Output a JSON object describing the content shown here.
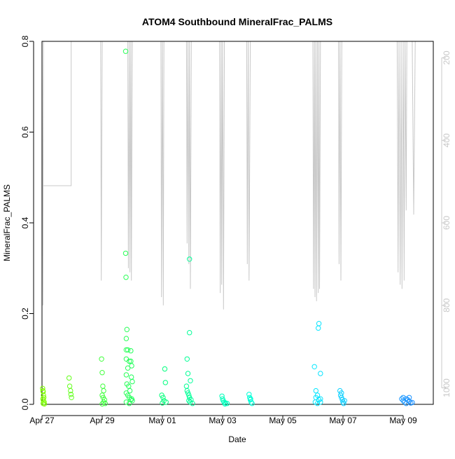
{
  "chart_data": {
    "type": "scatter",
    "title": "ATOM4 Southbound MineralFrac_PALMS",
    "xlabel": "Date",
    "ylabel": "MineralFrac_PALMS",
    "xlim": [
      0.0,
      13.0
    ],
    "ylim": [
      0.0,
      0.8
    ],
    "x_unit": "days since Apr 27",
    "x_ticks": [
      {
        "value": 0,
        "label": "Apr 27"
      },
      {
        "value": 2,
        "label": "Apr 29"
      },
      {
        "value": 4,
        "label": "May 01"
      },
      {
        "value": 6,
        "label": "May 03"
      },
      {
        "value": 8,
        "label": "May 05"
      },
      {
        "value": 10,
        "label": "May 07"
      },
      {
        "value": 12,
        "label": "May 09"
      }
    ],
    "y_ticks": [
      0.0,
      0.2,
      0.4,
      0.6,
      0.8
    ],
    "y_tick_labels": [
      "0.0",
      "0.2",
      "0.4",
      "0.6",
      "0.8"
    ],
    "secondary_axis": {
      "label": "",
      "range": [
        1040,
        160
      ],
      "ticks": [
        200,
        400,
        600,
        800,
        1000
      ],
      "tick_labels": [
        "200",
        "400",
        "600",
        "800",
        "1000"
      ],
      "color": "#c8c8c8"
    },
    "series": [
      {
        "name": "MineralFrac_PALMS",
        "color_scale": [
          "#7fff00",
          "#00ff7f",
          "#00ffff",
          "#1e90ff"
        ],
        "points": [
          [
            0.02,
            0.035
          ],
          [
            0.03,
            0.03
          ],
          [
            0.04,
            0.028
          ],
          [
            0.05,
            0.02
          ],
          [
            0.06,
            0.015
          ],
          [
            0.03,
            0.012
          ],
          [
            0.05,
            0.008
          ],
          [
            0.07,
            0.005
          ],
          [
            0.04,
            0.002
          ],
          [
            0.08,
            0.001
          ],
          [
            0.9,
            0.058
          ],
          [
            0.92,
            0.04
          ],
          [
            0.95,
            0.03
          ],
          [
            0.96,
            0.022
          ],
          [
            0.98,
            0.015
          ],
          [
            1.98,
            0.1
          ],
          [
            2.0,
            0.07
          ],
          [
            2.02,
            0.04
          ],
          [
            2.05,
            0.03
          ],
          [
            2.0,
            0.02
          ],
          [
            2.03,
            0.015
          ],
          [
            2.08,
            0.01
          ],
          [
            2.05,
            0.005
          ],
          [
            2.1,
            0.002
          ],
          [
            2.0,
            0.001
          ],
          [
            2.78,
            0.778
          ],
          [
            2.78,
            0.333
          ],
          [
            2.79,
            0.28
          ],
          [
            2.82,
            0.165
          ],
          [
            2.8,
            0.145
          ],
          [
            2.8,
            0.12
          ],
          [
            2.85,
            0.12
          ],
          [
            2.8,
            0.1
          ],
          [
            2.9,
            0.095
          ],
          [
            2.85,
            0.08
          ],
          [
            2.95,
            0.118
          ],
          [
            2.95,
            0.095
          ],
          [
            2.98,
            0.085
          ],
          [
            2.97,
            0.06
          ],
          [
            3.0,
            0.05
          ],
          [
            2.8,
            0.065
          ],
          [
            2.82,
            0.045
          ],
          [
            2.88,
            0.04
          ],
          [
            2.92,
            0.03
          ],
          [
            2.8,
            0.025
          ],
          [
            2.85,
            0.02
          ],
          [
            2.9,
            0.015
          ],
          [
            2.95,
            0.01
          ],
          [
            3.0,
            0.008
          ],
          [
            2.8,
            0.005
          ],
          [
            2.9,
            0.002
          ],
          [
            2.98,
            0.012
          ],
          [
            3.98,
            0.02
          ],
          [
            4.02,
            0.015
          ],
          [
            4.05,
            0.008
          ],
          [
            4.0,
            0.003
          ],
          [
            4.1,
            0.048
          ],
          [
            4.08,
            0.078
          ],
          [
            4.12,
            0.005
          ],
          [
            4.82,
            0.1
          ],
          [
            4.85,
            0.068
          ],
          [
            4.8,
            0.04
          ],
          [
            4.82,
            0.03
          ],
          [
            4.85,
            0.025
          ],
          [
            4.88,
            0.02
          ],
          [
            4.9,
            0.015
          ],
          [
            4.93,
            0.052
          ],
          [
            4.95,
            0.01
          ],
          [
            4.88,
            0.008
          ],
          [
            4.92,
            0.005
          ],
          [
            4.9,
            0.158
          ],
          [
            4.9,
            0.32
          ],
          [
            5.0,
            0.002
          ],
          [
            5.98,
            0.018
          ],
          [
            6.0,
            0.012
          ],
          [
            6.02,
            0.008
          ],
          [
            6.05,
            0.005
          ],
          [
            6.1,
            0.003
          ],
          [
            6.08,
            0.001
          ],
          [
            6.15,
            0.002
          ],
          [
            6.88,
            0.022
          ],
          [
            6.9,
            0.015
          ],
          [
            6.92,
            0.01
          ],
          [
            6.95,
            0.005
          ],
          [
            6.98,
            0.002
          ],
          [
            6.93,
            0.012
          ],
          [
            9.05,
            0.083
          ],
          [
            9.1,
            0.03
          ],
          [
            9.15,
            0.02
          ],
          [
            9.1,
            0.015
          ],
          [
            9.2,
            0.01
          ],
          [
            9.08,
            0.005
          ],
          [
            9.15,
            0.002
          ],
          [
            9.25,
            0.005
          ],
          [
            9.25,
            0.012
          ],
          [
            9.2,
            0.178
          ],
          [
            9.18,
            0.168
          ],
          [
            9.25,
            0.068
          ],
          [
            9.9,
            0.03
          ],
          [
            9.92,
            0.02
          ],
          [
            9.95,
            0.015
          ],
          [
            9.98,
            0.01
          ],
          [
            10.0,
            0.005
          ],
          [
            10.02,
            0.002
          ],
          [
            9.95,
            0.025
          ],
          [
            10.05,
            0.008
          ],
          [
            11.95,
            0.012
          ],
          [
            12.0,
            0.008
          ],
          [
            12.05,
            0.005
          ],
          [
            12.1,
            0.002
          ],
          [
            12.15,
            0.01
          ],
          [
            12.2,
            0.015
          ],
          [
            12.25,
            0.003
          ],
          [
            12.0,
            0.015
          ],
          [
            12.1,
            0.012
          ],
          [
            12.2,
            0.007
          ],
          [
            12.3,
            0.004
          ]
        ]
      },
      {
        "name": "flight track (secondary axis)",
        "color": "#c8c8c8",
        "points": [
          [
            0.0,
            160
          ],
          [
            0.02,
            510
          ],
          [
            0.0,
            510
          ],
          [
            0.97,
            510
          ],
          [
            0.97,
            160
          ],
          [
            0.95,
            160
          ],
          [
            0.0,
            160
          ],
          [
            0.03,
            800
          ],
          [
            0.05,
            160
          ],
          [
            1.95,
            160
          ],
          [
            1.97,
            740
          ],
          [
            2.0,
            160
          ],
          [
            2.85,
            160
          ],
          [
            2.87,
            710
          ],
          [
            2.9,
            160
          ],
          [
            2.92,
            720
          ],
          [
            2.95,
            160
          ],
          [
            2.97,
            740
          ],
          [
            3.0,
            160
          ],
          [
            3.95,
            160
          ],
          [
            3.97,
            780
          ],
          [
            4.0,
            160
          ],
          [
            4.03,
            800
          ],
          [
            4.05,
            160
          ],
          [
            4.8,
            160
          ],
          [
            4.82,
            650
          ],
          [
            4.85,
            160
          ],
          [
            4.88,
            700
          ],
          [
            4.9,
            160
          ],
          [
            4.93,
            760
          ],
          [
            4.96,
            160
          ],
          [
            5.9,
            160
          ],
          [
            5.92,
            770
          ],
          [
            5.95,
            160
          ],
          [
            5.97,
            750
          ],
          [
            6.0,
            160
          ],
          [
            6.03,
            810
          ],
          [
            6.06,
            160
          ],
          [
            6.8,
            160
          ],
          [
            6.82,
            700
          ],
          [
            6.85,
            160
          ],
          [
            6.88,
            740
          ],
          [
            6.92,
            160
          ],
          [
            9.0,
            160
          ],
          [
            9.02,
            760
          ],
          [
            9.05,
            160
          ],
          [
            9.07,
            780
          ],
          [
            9.1,
            160
          ],
          [
            9.12,
            790
          ],
          [
            9.15,
            160
          ],
          [
            9.18,
            770
          ],
          [
            9.2,
            160
          ],
          [
            9.22,
            760
          ],
          [
            9.25,
            160
          ],
          [
            9.85,
            160
          ],
          [
            9.87,
            700
          ],
          [
            9.9,
            160
          ],
          [
            9.93,
            740
          ],
          [
            9.96,
            160
          ],
          [
            11.8,
            160
          ],
          [
            11.83,
            720
          ],
          [
            11.86,
            160
          ],
          [
            11.9,
            750
          ],
          [
            11.93,
            160
          ],
          [
            11.96,
            760
          ],
          [
            12.0,
            160
          ],
          [
            12.03,
            740
          ],
          [
            12.06,
            160
          ],
          [
            12.1,
            570
          ],
          [
            12.12,
            160
          ],
          [
            12.3,
            160
          ],
          [
            12.35,
            580
          ],
          [
            12.4,
            160
          ]
        ]
      }
    ]
  }
}
